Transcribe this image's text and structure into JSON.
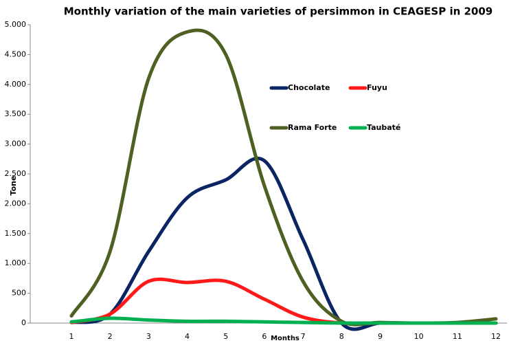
{
  "chart_data": {
    "type": "line",
    "title": "Monthly variation of the main varieties of persimmon in CEAGESP in 2009",
    "x_label": "Months",
    "y_label": "Tone",
    "categories": [
      "1",
      "2",
      "3",
      "4",
      "5",
      "6",
      "7",
      "8",
      "9",
      "10",
      "11",
      "12"
    ],
    "series": [
      {
        "name": "Chocolate",
        "color": "#0b2463",
        "values": [
          10,
          150,
          1200,
          2100,
          2400,
          2720,
          1400,
          0,
          0,
          0,
          0,
          0
        ]
      },
      {
        "name": "Fuyu",
        "color": "#ff1a1a",
        "values": [
          10,
          150,
          700,
          680,
          700,
          400,
          100,
          0,
          0,
          0,
          0,
          0
        ]
      },
      {
        "name": "Rama Forte",
        "color": "#4e6123",
        "values": [
          120,
          1200,
          4100,
          4880,
          4500,
          2300,
          700,
          30,
          10,
          0,
          10,
          70
        ]
      },
      {
        "name": "Taubaté",
        "color": "#00b050",
        "values": [
          20,
          80,
          50,
          30,
          30,
          20,
          10,
          0,
          0,
          0,
          0,
          0
        ]
      }
    ],
    "ylim": [
      0,
      5000
    ],
    "yticks": [
      0,
      500,
      {
        "value": 1000,
        "label": "1.000"
      },
      {
        "value": 1500,
        "label": "1.500"
      },
      {
        "value": 2000,
        "label": "2.000"
      },
      {
        "value": 2500,
        "label": "2.500"
      },
      {
        "value": 3000,
        "label": "3.000"
      },
      {
        "value": 3500,
        "label": "3.500"
      },
      {
        "value": 4000,
        "label": "4.000"
      },
      {
        "value": 4500,
        "label": "4.500"
      },
      {
        "value": 5000,
        "label": "5.000"
      }
    ]
  }
}
